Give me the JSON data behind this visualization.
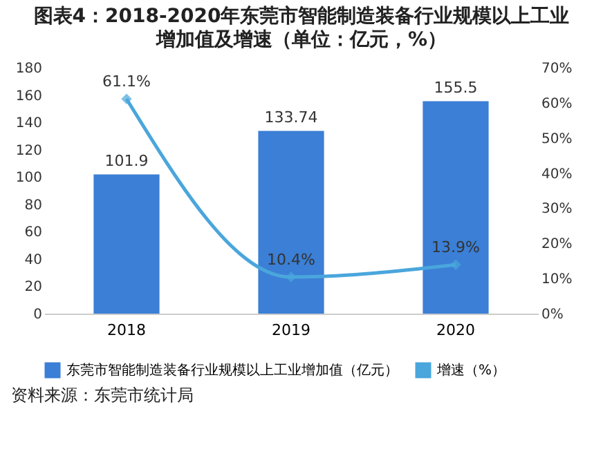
{
  "chart_data": {
    "type": "bar",
    "title": "图表4：2018-2020年东莞市智能制造装备行业规模以上工业增加值及增速（单位：亿元，%）",
    "categories": [
      "2018",
      "2019",
      "2020"
    ],
    "series": [
      {
        "name": "东莞市智能制造装备行业规模以上工业增加值（亿元）",
        "type": "bar",
        "color": "#3b7fd6",
        "values": [
          101.9,
          133.74,
          155.5
        ],
        "value_labels": [
          "101.9",
          "133.74",
          "155.5"
        ]
      },
      {
        "name": "增速（%）",
        "type": "line",
        "axis": "y2",
        "color": "#4aa6dc",
        "values": [
          61.1,
          10.4,
          13.9
        ],
        "value_labels": [
          "61.1%",
          "10.4%",
          "13.9%"
        ]
      }
    ],
    "ylim": [
      0,
      180
    ],
    "yticks": [
      0,
      20,
      40,
      60,
      80,
      100,
      120,
      140,
      160,
      180
    ],
    "y2lim": [
      0,
      70
    ],
    "y2ticks": [
      {
        "value": 0,
        "label": "0%"
      },
      {
        "value": 10,
        "label": "10%"
      },
      {
        "value": 20,
        "label": "20%"
      },
      {
        "value": 30,
        "label": "30%"
      },
      {
        "value": 40,
        "label": "40%"
      },
      {
        "value": 50,
        "label": "50%"
      },
      {
        "value": 60,
        "label": "60%"
      },
      {
        "value": 70,
        "label": "70%"
      }
    ],
    "marker": "diamond",
    "legend": "bottom",
    "grid": false,
    "annotations": [
      "资料来源：东莞市统计局"
    ]
  }
}
